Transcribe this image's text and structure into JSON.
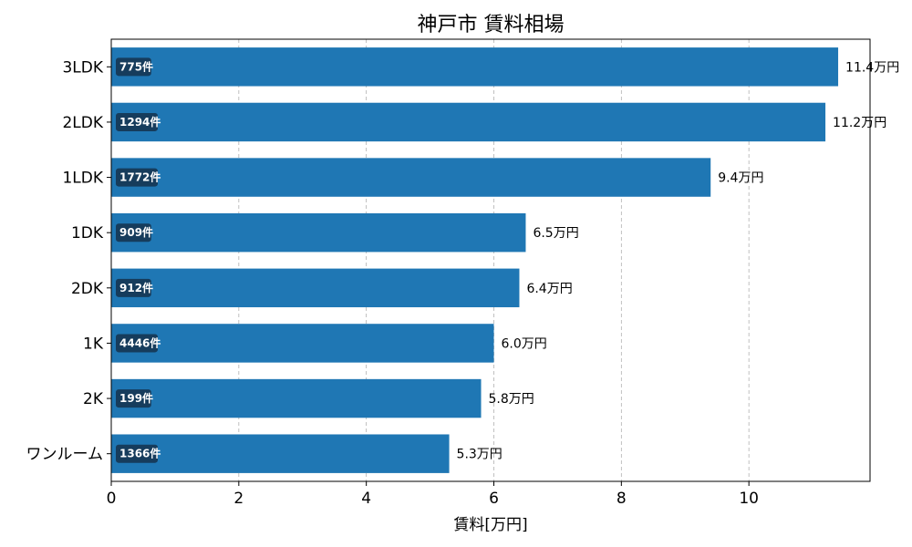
{
  "chart_data": {
    "type": "bar",
    "orientation": "horizontal",
    "title": "神戸市 賃料相場",
    "xlabel": "賃料[万円]",
    "ylabel": "",
    "xlim": [
      0,
      11.9
    ],
    "xticks": [
      0,
      2,
      4,
      6,
      8,
      10
    ],
    "grid": "x-dashed",
    "color": "#1f77b4",
    "badge_color": "#163c5c",
    "categories": [
      "3LDK",
      "2LDK",
      "1LDK",
      "1DK",
      "2DK",
      "1K",
      "2K",
      "ワンルーム"
    ],
    "values": [
      11.4,
      11.2,
      9.4,
      6.5,
      6.4,
      6.0,
      5.8,
      5.3
    ],
    "value_labels": [
      "11.4万円",
      "11.2万円",
      "9.4万円",
      "6.5万円",
      "6.4万円",
      "6.0万円",
      "5.8万円",
      "5.3万円"
    ],
    "counts": [
      775,
      1294,
      1772,
      909,
      912,
      4446,
      199,
      1366
    ],
    "count_labels": [
      "775件",
      "1294件",
      "1772件",
      "909件",
      "912件",
      "4446件",
      "199件",
      "1366件"
    ]
  }
}
